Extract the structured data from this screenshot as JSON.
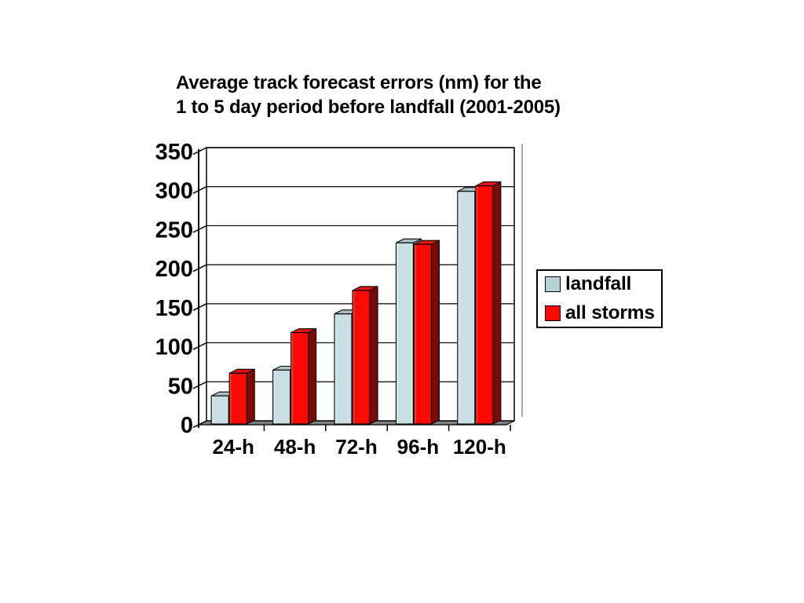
{
  "title": {
    "line1": "Average track forecast errors (nm) for the",
    "line2": "1 to 5 day period before landfall (2001-2005)"
  },
  "chart_data": {
    "type": "bar",
    "style": "3d-column",
    "title": "Average track forecast errors (nm) for the 1 to 5 day period before landfall (2001-2005)",
    "categories": [
      "24-h",
      "48-h",
      "72-h",
      "96-h",
      "120-h"
    ],
    "series": [
      {
        "name": "landfall",
        "values": [
          33,
          66,
          138,
          229,
          295
        ],
        "color": "#c8e0e4",
        "color_top": "#a7c1c6",
        "color_side": "#85a0a5",
        "legend_swatch": "#b5d3d8"
      },
      {
        "name": "all storms",
        "values": [
          62,
          114,
          168,
          227,
          302
        ],
        "color": "#fb0a03",
        "color_top": "#e8120b",
        "color_side": "#7c0a05",
        "legend_swatch": "#fb0a03"
      }
    ],
    "ylim": [
      0,
      350
    ],
    "ytick_step": 50,
    "yticks": [
      "350",
      "300",
      "250",
      "200",
      "150",
      "100",
      "50",
      "0"
    ],
    "grid": true,
    "legend_position": "right",
    "background": "#ffffff",
    "wall_color": "#ffffff",
    "floor_color": "#7f7f7f",
    "line_color": "#000000",
    "side_edge_color": "#8c8c8c"
  }
}
